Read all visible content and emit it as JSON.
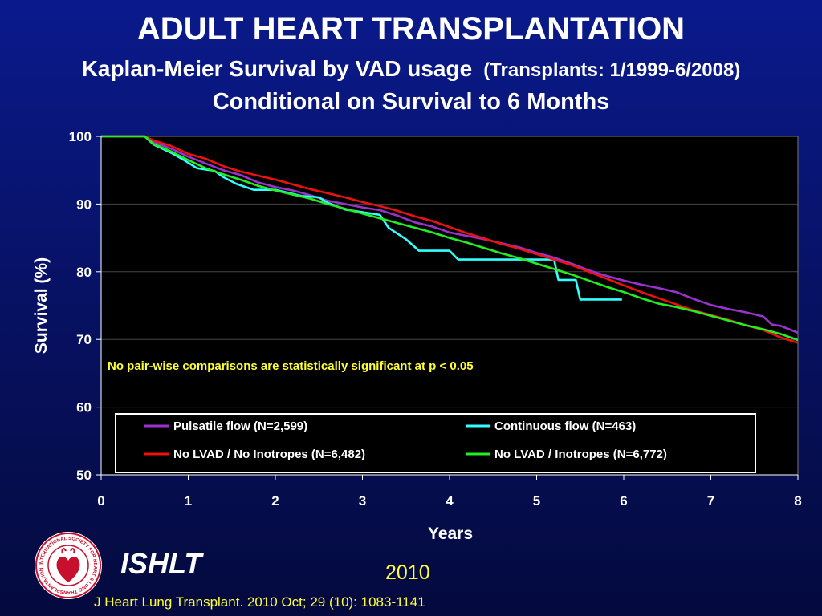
{
  "slide": {
    "title": "ADULT HEART TRANSPLANTATION",
    "subtitle_main": "Kaplan-Meier Survival by VAD usage",
    "subtitle_paren": "(Transplants: 1/1999-6/2008)",
    "subtitle_line2": "Conditional on Survival to 6 Months",
    "org": "ISHLT",
    "year": "2010",
    "citation": "J Heart Lung Transplant. 2010 Oct; 29 (10): 1083-1141",
    "logo_text": "INTERNATIONAL SOCIETY FOR HEART & LUNG TRANSPLANTATION"
  },
  "chart_data": {
    "type": "line",
    "xlabel": "Years",
    "ylabel": "Survival (%)",
    "xlim": [
      0,
      8
    ],
    "ylim": [
      50,
      100
    ],
    "xticks": [
      0,
      1,
      2,
      3,
      4,
      5,
      6,
      7,
      8
    ],
    "yticks": [
      50,
      60,
      70,
      80,
      90,
      100
    ],
    "grid": true,
    "annotation": "No pair-wise comparisons are statistically significant at p < 0.05",
    "legend_position": "bottom",
    "series": [
      {
        "name": "Pulsatile flow (N=2,599)",
        "color": "#9933cc",
        "x": [
          0,
          0.5,
          0.6,
          0.8,
          1.0,
          1.2,
          1.4,
          1.6,
          1.8,
          2.0,
          2.2,
          2.4,
          2.6,
          2.8,
          3.0,
          3.2,
          3.4,
          3.6,
          3.8,
          4.0,
          4.2,
          4.4,
          4.6,
          4.8,
          5.0,
          5.2,
          5.4,
          5.6,
          5.8,
          6.0,
          6.2,
          6.4,
          6.6,
          6.8,
          7.0,
          7.2,
          7.4,
          7.6,
          7.7,
          7.8,
          7.9,
          8.0
        ],
        "y": [
          100,
          100,
          99.2,
          98.2,
          97.0,
          96.0,
          95.0,
          94.3,
          93.2,
          92.5,
          92.0,
          91.3,
          90.5,
          90.0,
          89.5,
          89.1,
          88.3,
          87.3,
          86.7,
          85.8,
          85.3,
          84.8,
          84.2,
          83.6,
          82.8,
          82.1,
          81.2,
          80.2,
          79.4,
          78.7,
          78.1,
          77.6,
          77.0,
          76.0,
          75.1,
          74.5,
          74.0,
          73.4,
          72.2,
          72.0,
          71.5,
          71.0
        ]
      },
      {
        "name": "Continuous flow (N=463)",
        "color": "#33ffff",
        "x": [
          0,
          0.5,
          0.6,
          0.8,
          0.95,
          1.1,
          1.3,
          1.4,
          1.55,
          1.75,
          2.0,
          2.3,
          2.5,
          2.6,
          2.8,
          3.0,
          3.2,
          3.3,
          3.5,
          3.65,
          4.0,
          4.1,
          4.5,
          5.0,
          5.2,
          5.25,
          5.45,
          5.5,
          5.98
        ],
        "y": [
          100,
          100,
          98.8,
          97.6,
          96.5,
          95.3,
          94.9,
          94.0,
          93.0,
          92.1,
          92.1,
          91.2,
          91.0,
          90.2,
          89.2,
          88.8,
          88.4,
          86.5,
          84.8,
          83.1,
          83.1,
          81.8,
          81.8,
          81.8,
          81.8,
          78.8,
          78.8,
          75.9,
          75.9
        ]
      },
      {
        "name": "No LVAD / No Inotropes  (N=6,482)",
        "color": "#ee1111",
        "x": [
          0,
          0.5,
          0.6,
          0.8,
          1.0,
          1.2,
          1.4,
          1.6,
          1.8,
          2.0,
          2.2,
          2.4,
          2.6,
          2.8,
          3.0,
          3.2,
          3.4,
          3.6,
          3.8,
          4.0,
          4.2,
          4.4,
          4.6,
          4.8,
          5.0,
          5.2,
          5.4,
          5.6,
          5.8,
          6.0,
          6.2,
          6.4,
          6.6,
          6.8,
          7.0,
          7.2,
          7.4,
          7.6,
          7.8,
          8.0
        ],
        "y": [
          100,
          100,
          99.4,
          98.6,
          97.4,
          96.7,
          95.6,
          94.8,
          94.2,
          93.6,
          92.9,
          92.2,
          91.6,
          91.0,
          90.3,
          89.7,
          89.0,
          88.2,
          87.5,
          86.6,
          85.7,
          84.9,
          84.1,
          83.4,
          82.6,
          81.8,
          81.0,
          80.0,
          79.0,
          78.0,
          77.0,
          76.1,
          75.2,
          74.3,
          73.6,
          72.9,
          72.1,
          71.4,
          70.3,
          69.5
        ]
      },
      {
        "name": "No LVAD / Inotropes (N=6,772)",
        "color": "#22ee22",
        "x": [
          0,
          0.5,
          0.6,
          0.8,
          1.0,
          1.2,
          1.4,
          1.6,
          1.8,
          2.0,
          2.2,
          2.4,
          2.6,
          2.8,
          3.0,
          3.2,
          3.4,
          3.6,
          3.8,
          4.0,
          4.2,
          4.4,
          4.6,
          4.8,
          5.0,
          5.2,
          5.4,
          5.6,
          5.8,
          6.0,
          6.2,
          6.4,
          6.6,
          6.8,
          7.0,
          7.2,
          7.4,
          7.6,
          7.8,
          8.0
        ],
        "y": [
          100,
          100,
          98.9,
          97.8,
          96.5,
          95.3,
          94.4,
          93.6,
          92.7,
          92.0,
          91.4,
          90.8,
          90.0,
          89.3,
          88.6,
          87.9,
          87.2,
          86.5,
          85.8,
          85.0,
          84.3,
          83.5,
          82.7,
          82.0,
          81.2,
          80.4,
          79.6,
          78.7,
          77.8,
          77.0,
          76.1,
          75.3,
          74.8,
          74.2,
          73.5,
          72.8,
          72.1,
          71.5,
          70.8,
          69.9
        ]
      }
    ]
  }
}
